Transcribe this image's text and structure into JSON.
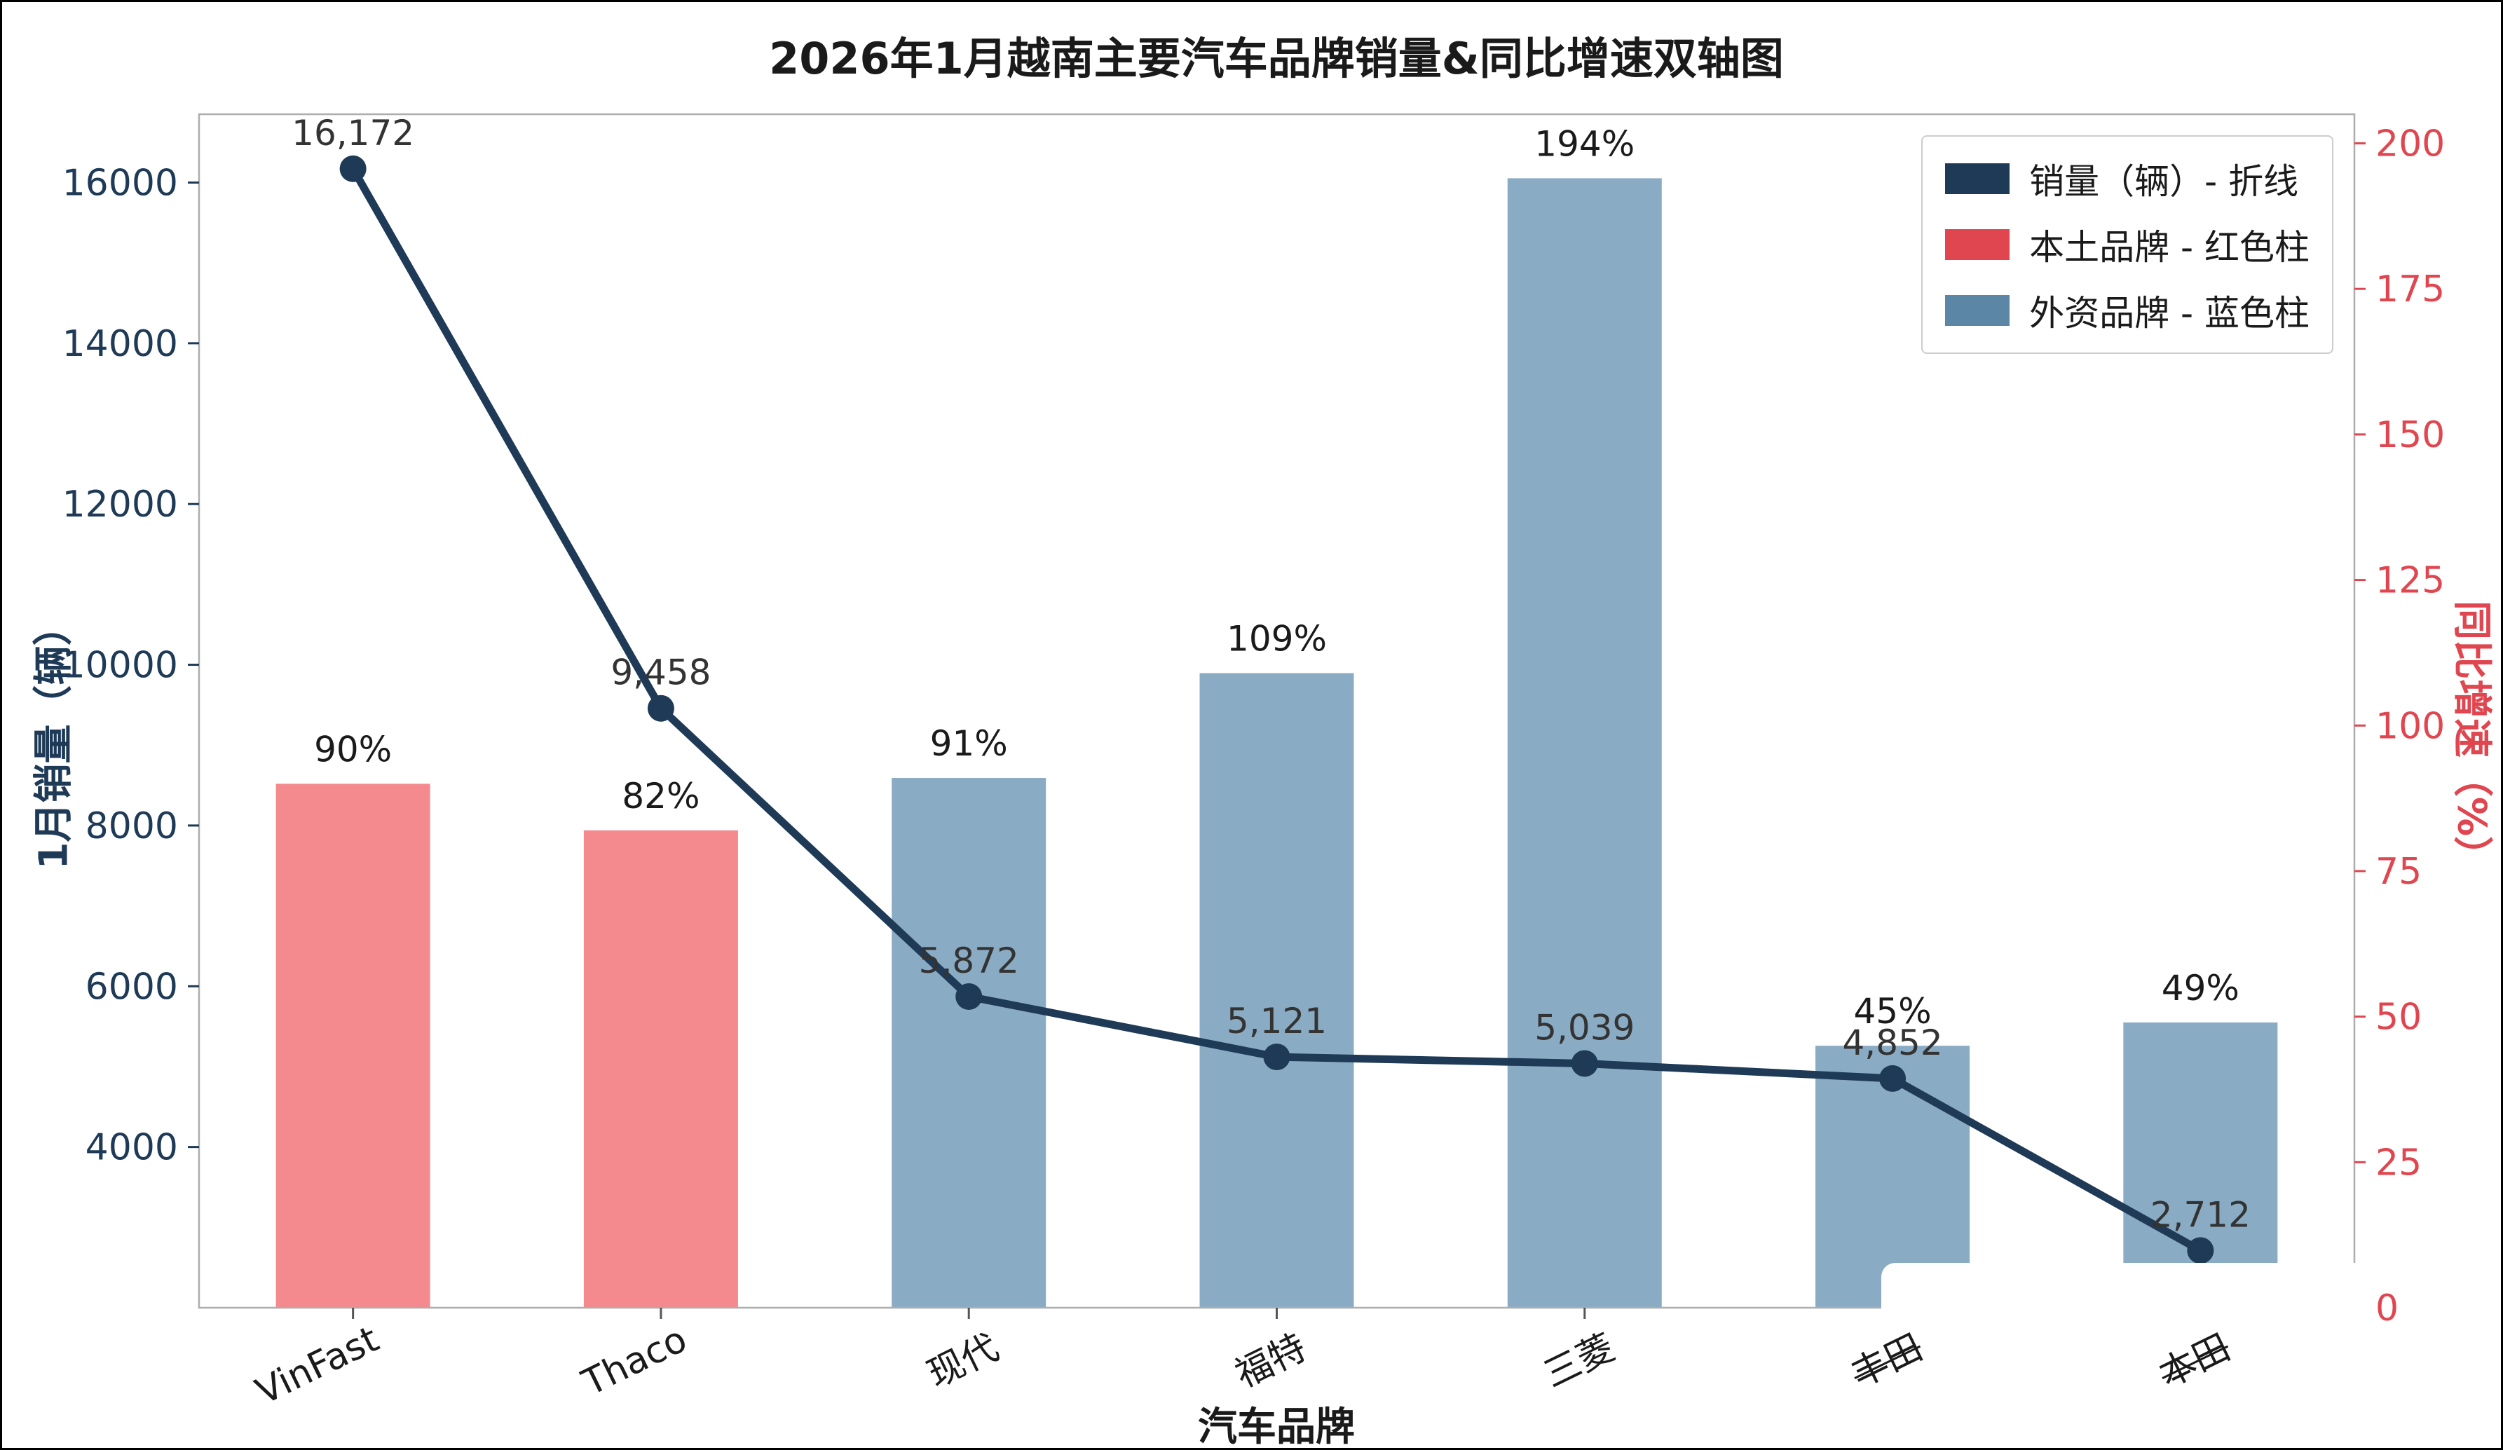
{
  "chart_data": {
    "type": "bar+line dual-axis",
    "title": "2026年1月越南主要汽车品牌销量&同比增速双轴图",
    "xlabel": "汽车品牌",
    "ylabel_left": "1月销量（辆）",
    "ylabel_right": "同比增速（%）",
    "categories": [
      "VinFast",
      "Thaco",
      "现代",
      "福特",
      "三菱",
      "丰田",
      "本田"
    ],
    "series": [
      {
        "name": "销量（辆）- 折线",
        "type": "line",
        "axis": "left",
        "values": [
          16172,
          9458,
          5872,
          5121,
          5039,
          4852,
          2712
        ],
        "labels": [
          "16,172",
          "9,458",
          "5,872",
          "5,121",
          "5,039",
          "4,852",
          "2,712"
        ]
      },
      {
        "name": "同比增速（%）",
        "type": "bar",
        "axis": "right",
        "values": [
          90,
          82,
          91,
          109,
          194,
          45,
          49
        ],
        "labels": [
          "90%",
          "82%",
          "91%",
          "109%",
          "194%",
          "45%",
          "49%"
        ],
        "groups": [
          "local",
          "local",
          "foreign",
          "foreign",
          "foreign",
          "foreign",
          "foreign"
        ]
      }
    ],
    "legend": [
      {
        "label": "销量（辆）- 折线",
        "color": "#1e3a56"
      },
      {
        "label": "本土品牌 - 红色柱",
        "color": "#e0464f"
      },
      {
        "label": "外资品牌 - 蓝色柱",
        "color": "#5b86a6"
      }
    ],
    "left_axis": {
      "min": 2000,
      "max": 16850,
      "ticks": [
        4000,
        6000,
        8000,
        10000,
        12000,
        14000,
        16000
      ]
    },
    "right_axis": {
      "min": 0,
      "max": 205,
      "ticks": [
        0,
        25,
        50,
        75,
        100,
        125,
        150,
        175,
        200
      ]
    },
    "colors": {
      "line": "#1e3a56",
      "local_bar": "#f48a8d",
      "foreign_bar": "#8aabc4",
      "left_axis_text": "#1e3a56",
      "right_axis_text": "#e0464f",
      "percent_label": "#1a1a1a",
      "value_label": "#333333",
      "spine": "#adadad"
    },
    "struck_category_labels": [
      "丰田",
      "本田"
    ],
    "grid": false,
    "legend_position": "top-right"
  }
}
